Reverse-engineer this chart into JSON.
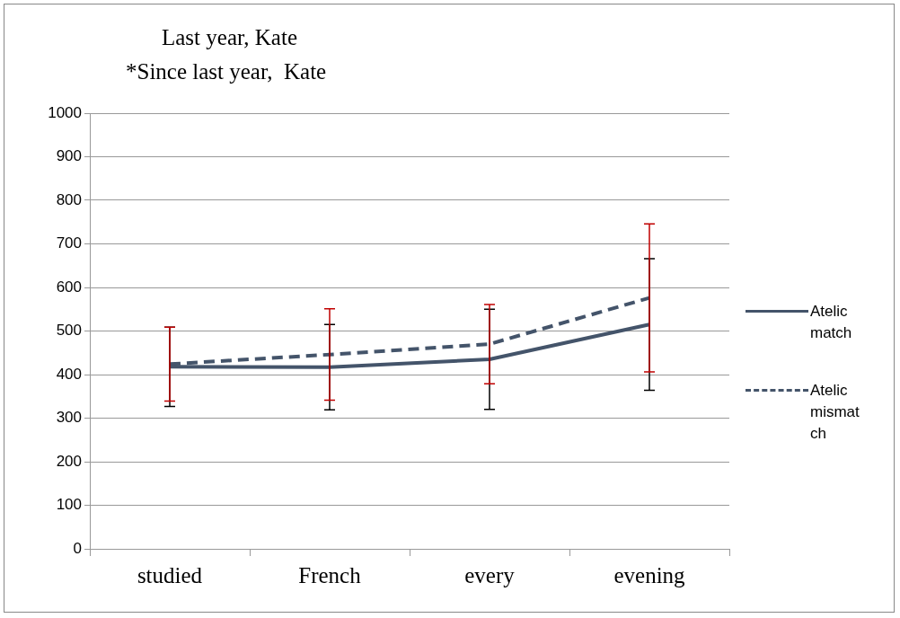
{
  "chart_data": {
    "type": "line",
    "title": "Last year, Kate",
    "subtitle": "*Since last year,  Kate",
    "categories": [
      "studied",
      "French",
      "every",
      "evening"
    ],
    "series": [
      {
        "name": "Atelic match",
        "color": "#44546a",
        "line_style": "solid",
        "values": [
          418,
          417,
          435,
          515
        ],
        "errors": [
          91,
          98,
          115,
          151
        ]
      },
      {
        "name": "Atelic mismatch",
        "color": "#44546a",
        "line_style": "dashed",
        "values": [
          424,
          446,
          470,
          576
        ],
        "errors": [
          85,
          105,
          91,
          170
        ]
      }
    ],
    "ylim": [
      0,
      1000
    ],
    "yticks": [
      0,
      100,
      200,
      300,
      400,
      500,
      600,
      700,
      800,
      900,
      1000
    ],
    "grid": "y",
    "legend": "right",
    "marker": "none"
  }
}
